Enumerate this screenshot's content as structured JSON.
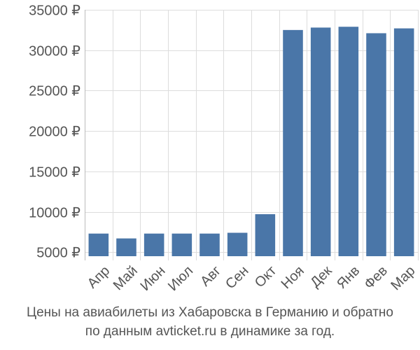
{
  "chart_data": {
    "type": "bar",
    "categories": [
      "Апр",
      "Май",
      "Июн",
      "Июл",
      "Авг",
      "Сен",
      "Окт",
      "Ноя",
      "Дек",
      "Янв",
      "Фев",
      "Мар"
    ],
    "values": [
      7300,
      6700,
      7300,
      7300,
      7300,
      7400,
      9700,
      32500,
      32800,
      32900,
      32100,
      32700
    ],
    "ylim": [
      4500,
      35000
    ],
    "yticks": [
      5000,
      10000,
      15000,
      20000,
      25000,
      30000,
      35000
    ],
    "currency": "₽",
    "grid": true,
    "bar_color": "#4a76a8",
    "grid_color": "#dddddd",
    "axis_color": "#bbbbbb"
  },
  "caption": {
    "line1": "Цены на авиабилеты из Хабаровска в Германию и обратно",
    "line2": "по данным avticket.ru в динамике за год."
  }
}
